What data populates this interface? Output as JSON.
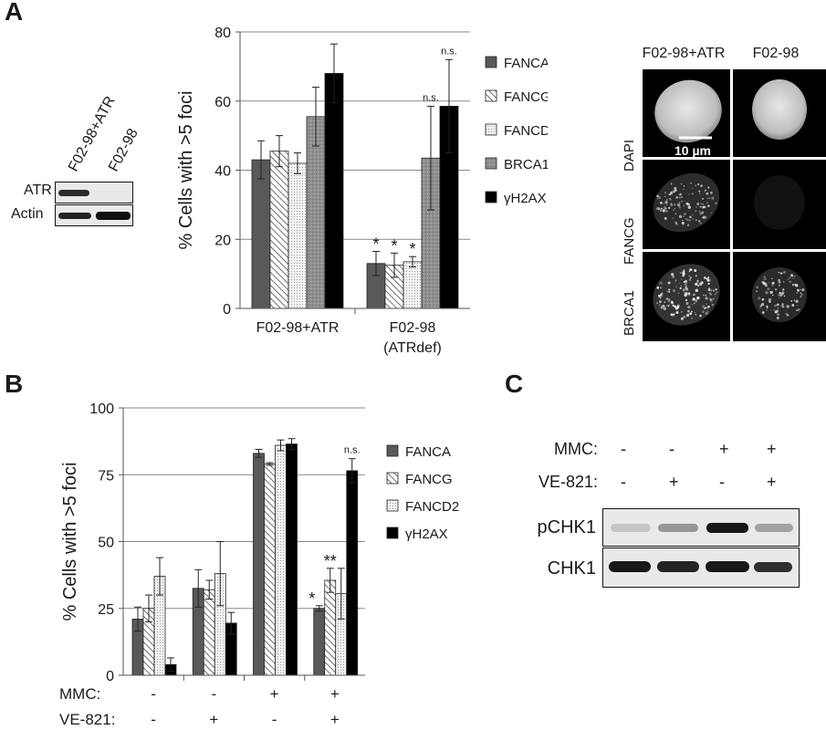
{
  "figure": {
    "panel_labels": {
      "a": "A",
      "b": "B",
      "c": "C"
    }
  },
  "panelA_blot": {
    "lane_labels": [
      "F02-98+ATR",
      "F02-98"
    ],
    "row_labels": [
      "ATR",
      "Actin"
    ]
  },
  "panelA_images": {
    "columns": [
      "F02-98+ATR",
      "F02-98"
    ],
    "rows": [
      "DAPI",
      "FANCG",
      "BRCA1"
    ],
    "scale_bar": "10 µm"
  },
  "panelC": {
    "treatments": [
      {
        "label": "MMC:",
        "values": [
          "-",
          "-",
          "+",
          "+"
        ]
      },
      {
        "label": "VE-821:",
        "values": [
          "-",
          "+",
          "-",
          "+"
        ]
      }
    ],
    "rows": [
      "pCHK1",
      "CHK1"
    ],
    "pCHK1_intensity": [
      0.15,
      0.35,
      0.9,
      0.3
    ],
    "CHK1_intensity": [
      0.9,
      0.85,
      0.9,
      0.8
    ]
  },
  "chart_data": [
    {
      "type": "bar",
      "ylabel": "% Cells with >5 foci",
      "ylim": [
        0,
        80
      ],
      "yticks": [
        0,
        20,
        40,
        60,
        80
      ],
      "grid": true,
      "legend_position": "right",
      "categories": [
        "F02-98+ATR",
        "F02-98\n(ATRdef)"
      ],
      "series": [
        {
          "name": "FANCA",
          "values": [
            43,
            13
          ],
          "errors": [
            5.5,
            3.5
          ],
          "color": "#595959",
          "pattern": "solid"
        },
        {
          "name": "FANCG",
          "values": [
            45.5,
            12.5
          ],
          "errors": [
            4.5,
            3.5
          ],
          "color": "#ffffff",
          "pattern": "hatch"
        },
        {
          "name": "FANCD2",
          "values": [
            42,
            13.5
          ],
          "errors": [
            3,
            1.5
          ],
          "color": "#f0f0f0",
          "pattern": "dots"
        },
        {
          "name": "BRCA1",
          "values": [
            55.5,
            43.5
          ],
          "errors": [
            8.5,
            15
          ],
          "color": "#9a9a9a",
          "pattern": "grain"
        },
        {
          "name": "γH2AX",
          "values": [
            68,
            58.5
          ],
          "errors": [
            8.5,
            13.5
          ],
          "color": "#000000",
          "pattern": "solid"
        }
      ],
      "annotations": [
        {
          "category": 1,
          "series": 0,
          "text": "*"
        },
        {
          "category": 1,
          "series": 1,
          "text": "*"
        },
        {
          "category": 1,
          "series": 2,
          "text": "*"
        },
        {
          "category": 1,
          "series": 3,
          "text": "n.s."
        },
        {
          "category": 1,
          "series": 4,
          "text": "n.s."
        }
      ]
    },
    {
      "type": "bar",
      "ylabel": "% Cells with >5 foci",
      "ylim": [
        0,
        100
      ],
      "yticks": [
        0,
        25,
        50,
        75,
        100
      ],
      "grid": true,
      "legend_position": "right",
      "categories": [
        "1",
        "2",
        "3",
        "4"
      ],
      "treatments": [
        {
          "label": "MMC:",
          "values": [
            "-",
            "-",
            "+",
            "+"
          ]
        },
        {
          "label": "VE-821:",
          "values": [
            "-",
            "+",
            "-",
            "+"
          ]
        }
      ],
      "series": [
        {
          "name": "FANCA",
          "values": [
            21,
            32.5,
            83,
            25
          ],
          "errors": [
            4.5,
            7,
            1.5,
            1
          ],
          "color": "#595959",
          "pattern": "solid"
        },
        {
          "name": "FANCG",
          "values": [
            25,
            32,
            79,
            35.5
          ],
          "errors": [
            5,
            3.5,
            0.5,
            4.5
          ],
          "color": "#ffffff",
          "pattern": "hatch"
        },
        {
          "name": "FANCD2",
          "values": [
            37,
            38,
            86,
            30.5
          ],
          "errors": [
            7,
            12,
            2,
            9.5
          ],
          "color": "#f0f0f0",
          "pattern": "dots"
        },
        {
          "name": "γH2AX",
          "values": [
            4,
            19.5,
            86.5,
            76.5
          ],
          "errors": [
            2.5,
            4,
            2,
            4.5
          ],
          "color": "#000000",
          "pattern": "solid"
        }
      ],
      "annotations": [
        {
          "category": 3,
          "series": 0,
          "text": "*"
        },
        {
          "category": 3,
          "series": 1,
          "text": "**"
        },
        {
          "category": 3,
          "series": 3,
          "text": "n.s."
        }
      ]
    }
  ]
}
